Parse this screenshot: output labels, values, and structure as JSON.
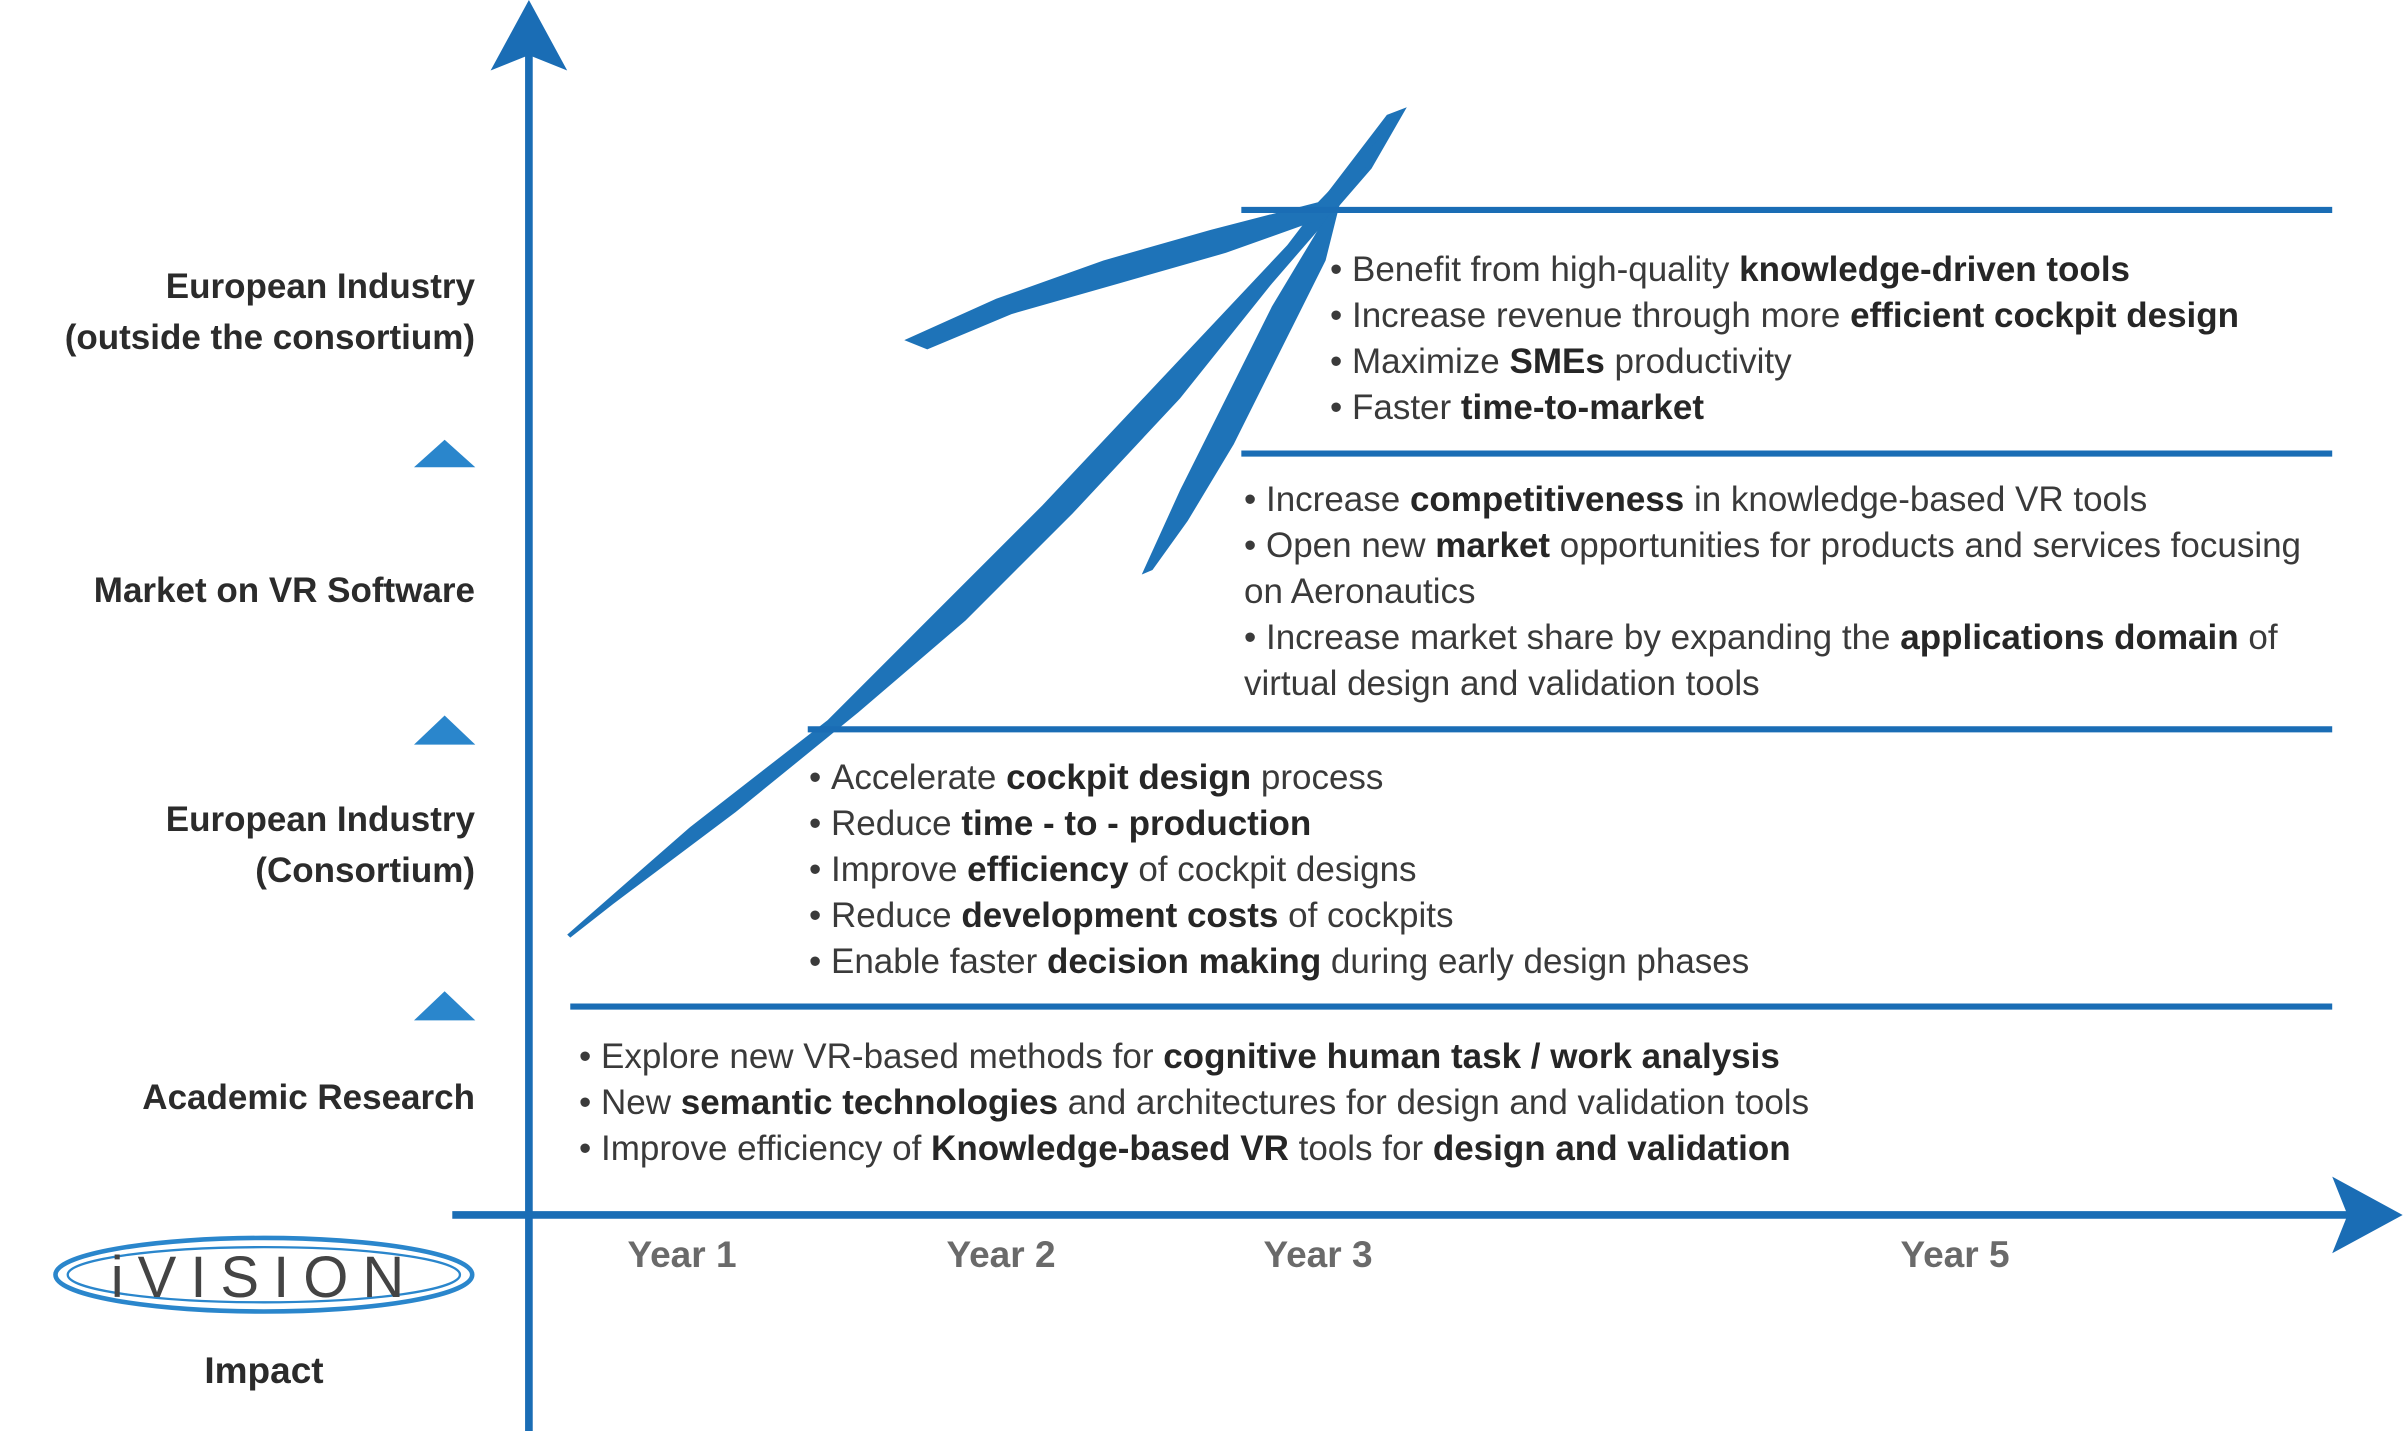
{
  "levels": [
    [
      "European Industry",
      "(outside the consortium)"
    ],
    [
      "Market on VR Software"
    ],
    [
      "European Industry",
      "(Consortium)"
    ],
    [
      "Academic Research"
    ]
  ],
  "impacts": [
    {
      "bullets": [
        [
          "Benefit from high-quality ",
          "knowledge-driven tools"
        ],
        [
          "Increase revenue through more ",
          "efficient cockpit design"
        ],
        [
          "Maximize ",
          "SMEs",
          " productivity"
        ],
        [
          "Faster ",
          "time-to-market"
        ]
      ]
    },
    {
      "bullets": [
        [
          "Increase ",
          "competitiveness",
          " in knowledge-based VR tools"
        ],
        [
          "Open new ",
          "market",
          " opportunities for products and services focusing on Aeronautics"
        ],
        [
          "Increase market share by expanding the ",
          "applications domain",
          " of virtual design and validation tools"
        ]
      ]
    },
    {
      "bullets": [
        [
          "Accelerate ",
          "cockpit design",
          " process"
        ],
        [
          "Reduce ",
          "time - to - production"
        ],
        [
          "Improve ",
          "efficiency",
          " of cockpit designs"
        ],
        [
          "Reduce ",
          "development costs",
          " of cockpits"
        ],
        [
          "Enable faster ",
          "decision making",
          " during early design phases"
        ]
      ]
    },
    {
      "bullets": [
        [
          "Explore new VR-based methods for ",
          "cognitive human task / work analysis"
        ],
        [
          "New ",
          "semantic technologies",
          " and architectures for design and validation tools"
        ],
        [
          "Improve efficiency of ",
          "Knowledge-based VR",
          " tools for ",
          "design and validation"
        ]
      ]
    }
  ],
  "years": [
    "Year 1",
    "Year 2",
    "Year 3",
    "Year 5"
  ],
  "logo": "iVISION",
  "axis_label": "Impact"
}
